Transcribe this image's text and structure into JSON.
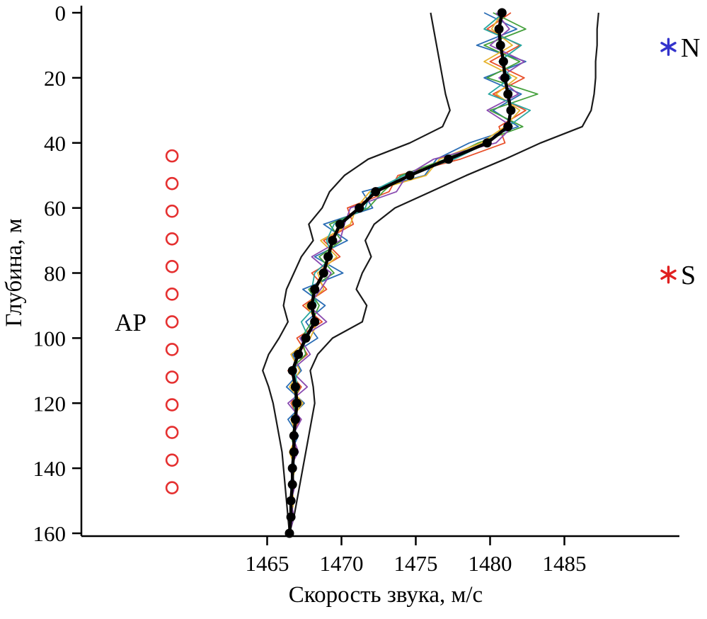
{
  "page": {
    "background": "#ffffff"
  },
  "chart_data": {
    "type": "line",
    "title": "",
    "xlabel": "Скорость звука, м/с",
    "ylabel": "Глубина, м",
    "xlim": [
      1452.5,
      1492.5
    ],
    "ylim": [
      0,
      160
    ],
    "x_ticks": [
      1465,
      1470,
      1475,
      1480,
      1485
    ],
    "y_ticks": [
      0,
      20,
      40,
      60,
      80,
      100,
      120,
      140,
      160
    ],
    "grid": false,
    "legend_position": "right-inside",
    "depths": [
      0,
      5,
      10,
      15,
      20,
      25,
      30,
      35,
      40,
      45,
      50,
      55,
      60,
      65,
      70,
      75,
      80,
      85,
      90,
      95,
      100,
      105,
      110,
      115,
      120,
      125,
      130,
      135,
      140,
      145,
      150,
      155,
      160
    ],
    "mean_profile": {
      "name": "mean-sound-speed-profile",
      "color": "#000000",
      "values": [
        1480.8,
        1480.6,
        1480.7,
        1480.9,
        1481.0,
        1481.2,
        1481.4,
        1481.2,
        1479.8,
        1477.2,
        1474.6,
        1472.3,
        1471.2,
        1469.9,
        1469.4,
        1469.1,
        1468.8,
        1468.2,
        1468.0,
        1468.2,
        1467.6,
        1467.1,
        1466.7,
        1466.9,
        1467.0,
        1466.9,
        1466.8,
        1466.8,
        1466.7,
        1466.7,
        1466.6,
        1466.6,
        1466.5
      ]
    },
    "envelope": {
      "name": "min-max-envelope",
      "color": "#1a1a1a",
      "min": [
        1476.0,
        1476.2,
        1476.4,
        1476.6,
        1476.8,
        1477.0,
        1477.3,
        1476.8,
        1474.6,
        1471.8,
        1470.2,
        1469.2,
        1468.7,
        1467.8,
        1468.1,
        1467.3,
        1466.8,
        1466.3,
        1466.1,
        1466.4,
        1465.8,
        1465.1,
        1464.7,
        1465.1,
        1465.4,
        1465.6,
        1465.8,
        1466.0,
        1466.1,
        1466.2,
        1466.3,
        1466.4,
        1466.5
      ],
      "max": [
        1487.3,
        1487.2,
        1487.2,
        1487.1,
        1487.1,
        1487.0,
        1486.8,
        1486.2,
        1483.4,
        1481.0,
        1478.4,
        1476.0,
        1473.6,
        1472.2,
        1471.6,
        1472.0,
        1471.4,
        1471.0,
        1471.7,
        1471.4,
        1469.4,
        1468.4,
        1467.9,
        1468.1,
        1468.2,
        1468.0,
        1467.8,
        1467.6,
        1467.4,
        1467.2,
        1467.0,
        1466.8,
        1466.5
      ]
    },
    "series": [
      {
        "name": "profile-blue",
        "color": "#2a6db5",
        "values": [
          1479.6,
          1481.8,
          1479.1,
          1482.4,
          1479.6,
          1482.1,
          1480.2,
          1481.9,
          1478.6,
          1476.4,
          1475.6,
          1471.4,
          1472.1,
          1468.8,
          1470.4,
          1468.2,
          1470.1,
          1467.4,
          1468.9,
          1467.6,
          1468.4,
          1466.7,
          1467.3,
          1466.3,
          1467.5,
          1466.4,
          1467.1,
          1466.6,
          1466.9,
          1466.5,
          1466.8,
          1466.6,
          1466.5
        ]
      },
      {
        "name": "profile-orange",
        "color": "#e8502a",
        "values": [
          1481.4,
          1479.8,
          1482.0,
          1480.0,
          1482.3,
          1480.2,
          1482.4,
          1480.6,
          1481.0,
          1478.0,
          1473.8,
          1473.2,
          1470.4,
          1470.8,
          1468.8,
          1469.9,
          1468.0,
          1469.0,
          1467.4,
          1468.7,
          1467.0,
          1467.7,
          1466.4,
          1467.3,
          1466.6,
          1467.2,
          1466.6,
          1467.0,
          1466.6,
          1466.8,
          1466.6,
          1466.7,
          1466.5
        ]
      },
      {
        "name": "profile-green",
        "color": "#44a03c",
        "values": [
          1480.2,
          1482.4,
          1479.6,
          1482.0,
          1479.8,
          1483.2,
          1480.0,
          1482.2,
          1479.2,
          1477.0,
          1474.0,
          1472.8,
          1471.8,
          1469.2,
          1470.0,
          1468.5,
          1469.5,
          1467.8,
          1468.5,
          1468.0,
          1467.3,
          1467.6,
          1466.5,
          1467.2,
          1466.7,
          1467.1,
          1466.6,
          1466.9,
          1466.7,
          1466.8,
          1466.6,
          1466.7,
          1466.5
        ]
      },
      {
        "name": "profile-gold",
        "color": "#e6b32e",
        "values": [
          1480.8,
          1480.1,
          1481.5,
          1479.6,
          1481.8,
          1480.4,
          1482.0,
          1481.0,
          1479.4,
          1476.6,
          1475.7,
          1471.9,
          1471.0,
          1470.6,
          1468.6,
          1469.7,
          1468.4,
          1468.8,
          1467.6,
          1468.4,
          1467.9,
          1466.6,
          1467.2,
          1466.5,
          1467.4,
          1466.6,
          1467.0,
          1466.5,
          1466.9,
          1466.6,
          1466.8,
          1466.6,
          1466.5
        ]
      },
      {
        "name": "profile-purple",
        "color": "#8a4bb0",
        "values": [
          1480.4,
          1481.3,
          1480.0,
          1482.3,
          1480.6,
          1481.9,
          1479.8,
          1481.5,
          1480.4,
          1476.2,
          1474.4,
          1473.7,
          1470.6,
          1470.2,
          1469.9,
          1468.0,
          1469.3,
          1468.6,
          1467.8,
          1469.0,
          1467.2,
          1467.9,
          1466.6,
          1467.7,
          1466.4,
          1467.3,
          1466.7,
          1467.1,
          1466.5,
          1466.9,
          1466.6,
          1466.8,
          1466.5
        ]
      },
      {
        "name": "profile-teal",
        "color": "#2aa7a0",
        "values": [
          1480.9,
          1479.6,
          1482.1,
          1480.6,
          1481.4,
          1479.9,
          1482.7,
          1481.2,
          1479.8,
          1477.6,
          1474.2,
          1472.0,
          1471.6,
          1469.5,
          1469.0,
          1469.4,
          1468.2,
          1468.0,
          1468.3,
          1467.3,
          1467.8,
          1467.0,
          1466.9,
          1467.0,
          1466.8,
          1467.0,
          1466.8,
          1466.7,
          1466.8,
          1466.7,
          1466.6,
          1466.6,
          1466.5
        ]
      }
    ],
    "array_markers": {
      "label": "АР",
      "color": "#e53030",
      "x_value": 1458.6,
      "depths": [
        44,
        52.5,
        61,
        69.5,
        78,
        86.5,
        95,
        103.5,
        112,
        120.5,
        129,
        137.5,
        146
      ]
    },
    "legend": [
      {
        "name": "station-n",
        "label": "N",
        "marker": "asterisk",
        "color": "#3333cc",
        "x_value": 1492.0,
        "depth": 10.5
      },
      {
        "name": "station-s",
        "label": "S",
        "marker": "asterisk",
        "color": "#e02020",
        "x_value": 1492.0,
        "depth": 80.5
      }
    ]
  }
}
